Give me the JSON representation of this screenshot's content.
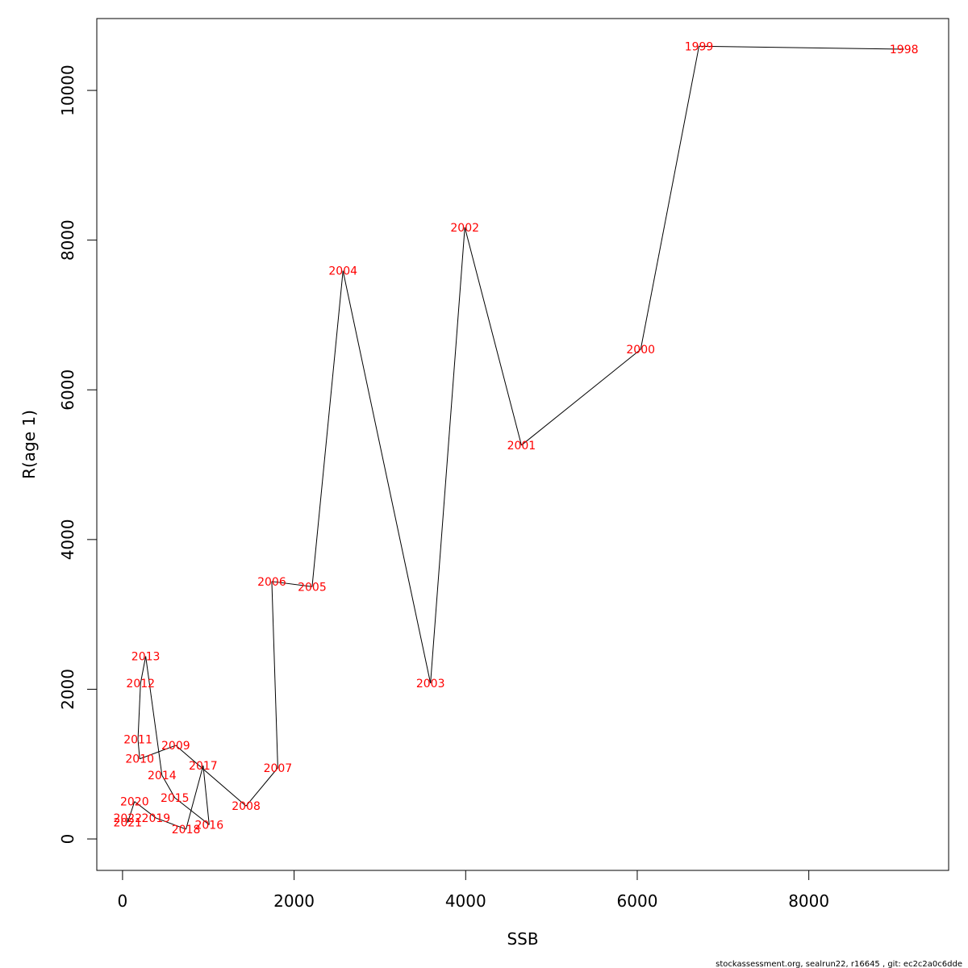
{
  "chart_data": {
    "type": "line",
    "title": "",
    "xlabel": "SSB",
    "ylabel": "R(age 1)",
    "xlim": [
      -300,
      9630
    ],
    "ylim": [
      -420,
      10960
    ],
    "xticks": [
      0,
      2000,
      4000,
      6000,
      8000
    ],
    "yticks": [
      0,
      2000,
      4000,
      6000,
      8000,
      10000
    ],
    "grid": false,
    "line_color": "#000000",
    "label_color": "#ff0000",
    "points": [
      {
        "label": "1998",
        "x": 9110,
        "y": 10550
      },
      {
        "label": "1999",
        "x": 6720,
        "y": 10590
      },
      {
        "label": "2000",
        "x": 6040,
        "y": 6540
      },
      {
        "label": "2001",
        "x": 4650,
        "y": 5260
      },
      {
        "label": "2002",
        "x": 3990,
        "y": 8170
      },
      {
        "label": "2003",
        "x": 3590,
        "y": 2080
      },
      {
        "label": "2004",
        "x": 2570,
        "y": 7590
      },
      {
        "label": "2005",
        "x": 2210,
        "y": 3370
      },
      {
        "label": "2006",
        "x": 1740,
        "y": 3440
      },
      {
        "label": "2007",
        "x": 1810,
        "y": 950
      },
      {
        "label": "2008",
        "x": 1440,
        "y": 440
      },
      {
        "label": "2009",
        "x": 620,
        "y": 1250
      },
      {
        "label": "2010",
        "x": 200,
        "y": 1070
      },
      {
        "label": "2011",
        "x": 180,
        "y": 1330
      },
      {
        "label": "2012",
        "x": 210,
        "y": 2080
      },
      {
        "label": "2013",
        "x": 270,
        "y": 2440
      },
      {
        "label": "2014",
        "x": 460,
        "y": 850
      },
      {
        "label": "2015",
        "x": 610,
        "y": 550
      },
      {
        "label": "2016",
        "x": 1010,
        "y": 190
      },
      {
        "label": "2017",
        "x": 940,
        "y": 980
      },
      {
        "label": "2018",
        "x": 740,
        "y": 130
      },
      {
        "label": "2019",
        "x": 390,
        "y": 280
      },
      {
        "label": "2020",
        "x": 140,
        "y": 500
      },
      {
        "label": "2021",
        "x": 60,
        "y": 220
      },
      {
        "label": "2022",
        "x": 60,
        "y": 280
      }
    ]
  },
  "footer": "stockassessment.org, sealrun22, r16645 , git: ec2c2a0c6dde"
}
